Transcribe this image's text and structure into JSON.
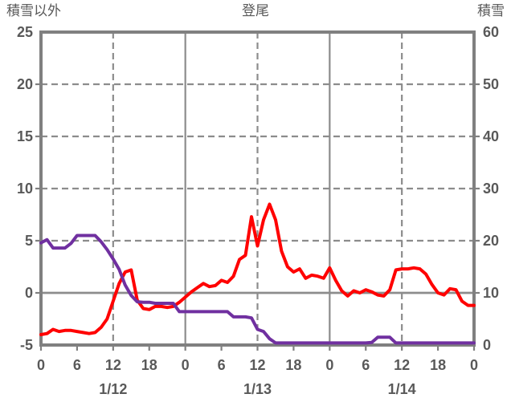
{
  "header": {
    "left_axis_title": "積雪以外",
    "chart_title": "登尾",
    "right_axis_title": "積雪"
  },
  "colors": {
    "red_series": "#ff0000",
    "purple_series": "#7030a0",
    "grid": "#8c8c8c",
    "frame": "#808080",
    "text": "#595959",
    "background": "#ffffff"
  },
  "chart_data": {
    "type": "line",
    "title": "登尾",
    "x_axis": {
      "unit": "hour",
      "min": 0,
      "max": 72,
      "tick_interval": 6,
      "tick_labels": [
        "0",
        "6",
        "12",
        "18",
        "0",
        "6",
        "12",
        "18",
        "0",
        "6",
        "12",
        "18",
        "0"
      ],
      "date_labels": [
        {
          "label": "1/12",
          "hour": 12
        },
        {
          "label": "1/13",
          "hour": 36
        },
        {
          "label": "1/14",
          "hour": 60
        }
      ]
    },
    "y_left": {
      "label": "積雪以外",
      "min": -5,
      "max": 25,
      "tick_interval": 5,
      "tick_labels": [
        "25",
        "20",
        "15",
        "10",
        "5",
        "0",
        "-5"
      ]
    },
    "y_right": {
      "label": "積雪",
      "min": 0,
      "max": 60,
      "tick_interval": 10,
      "tick_labels": [
        "60",
        "50",
        "40",
        "30",
        "20",
        "10",
        "0"
      ]
    },
    "gridlines": {
      "vertical_dashed_hours": [
        12,
        36,
        60
      ],
      "vertical_solid_hours": [
        24,
        48
      ],
      "horizontal_dashed_left_values": [
        20,
        15,
        10,
        5
      ],
      "horizontal_solid_left_values": [
        0
      ]
    },
    "legend": "none",
    "series": [
      {
        "name": "積雪以外",
        "axis": "left",
        "color": "#ff0000",
        "values": [
          -4.0,
          -3.9,
          -3.5,
          -3.7,
          -3.6,
          -3.6,
          -3.7,
          -3.8,
          -3.9,
          -3.8,
          -3.3,
          -2.5,
          -0.8,
          0.9,
          2.0,
          2.2,
          -0.7,
          -1.5,
          -1.6,
          -1.3,
          -1.3,
          -1.4,
          -1.3,
          -0.9,
          -0.4,
          0.1,
          0.5,
          0.9,
          0.6,
          0.7,
          1.2,
          1.0,
          1.6,
          3.2,
          3.6,
          7.3,
          4.5,
          7.0,
          8.5,
          7.0,
          4.0,
          2.5,
          2.0,
          2.3,
          1.4,
          1.7,
          1.6,
          1.4,
          2.4,
          1.2,
          0.2,
          -0.3,
          0.2,
          0.0,
          0.3,
          0.1,
          -0.2,
          -0.3,
          0.3,
          2.2,
          2.3,
          2.3,
          2.4,
          2.3,
          1.8,
          0.8,
          0.0,
          -0.2,
          0.4,
          0.3,
          -0.8,
          -1.2,
          -1.2
        ]
      },
      {
        "name": "積雪",
        "axis": "right",
        "color": "#7030a0",
        "values": [
          19.6,
          20.2,
          18.6,
          18.6,
          18.6,
          19.5,
          21.0,
          21.0,
          21.0,
          21.0,
          19.8,
          18.3,
          16.5,
          14.5,
          11.5,
          9.5,
          8.3,
          8.2,
          8.2,
          8.0,
          8.0,
          8.0,
          8.0,
          6.4,
          6.4,
          6.4,
          6.4,
          6.4,
          6.4,
          6.4,
          6.4,
          6.4,
          5.4,
          5.4,
          5.4,
          5.2,
          3.0,
          2.6,
          1.2,
          0.4,
          0.4,
          0.4,
          0.4,
          0.4,
          0.4,
          0.4,
          0.4,
          0.4,
          0.4,
          0.4,
          0.4,
          0.4,
          0.4,
          0.4,
          0.4,
          0.5,
          1.5,
          1.5,
          1.5,
          0.4,
          0.4,
          0.4,
          0.4,
          0.4,
          0.4,
          0.4,
          0.4,
          0.4,
          0.4,
          0.4,
          0.4,
          0.4,
          0.4
        ]
      }
    ]
  }
}
